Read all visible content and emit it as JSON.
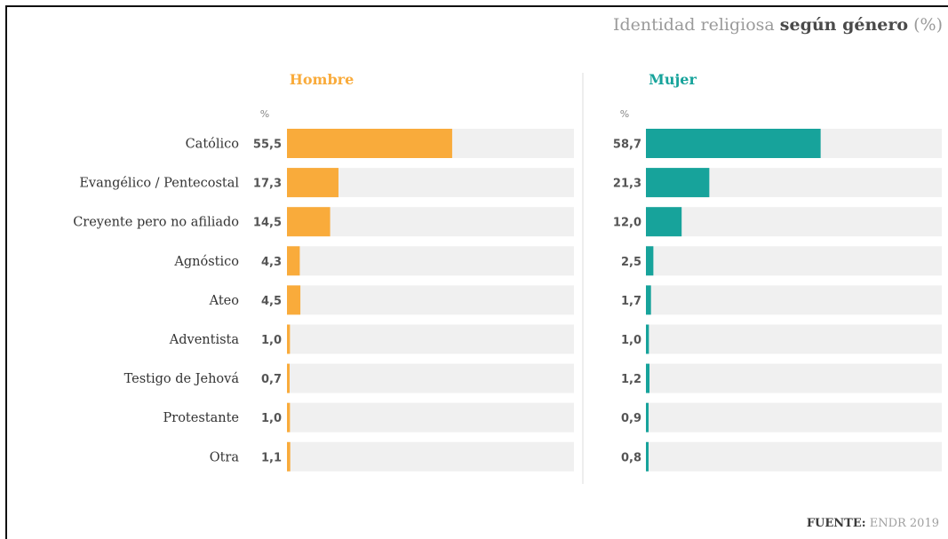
{
  "title_light": "Identidad religiosa",
  "title_bold": "según género",
  "title_suffix": "(%)",
  "source_label": "FUENTE:",
  "source_text": "ENDR 2019",
  "unit": "%",
  "colors": {
    "hombre": "#f9ab3b",
    "mujer": "#17a39b",
    "track": "#f0f0f0"
  },
  "chart_data": {
    "type": "bar",
    "orientation": "horizontal",
    "title": "Identidad religiosa según género (%)",
    "categories": [
      "Católico",
      "Evangélico / Pentecostal",
      "Creyente pero no afiliado",
      "Agnóstico",
      "Ateo",
      "Adventista",
      "Testigo de Jehová",
      "Protestante",
      "Otra"
    ],
    "series": [
      {
        "name": "Hombre",
        "values": [
          55.5,
          17.3,
          14.5,
          4.3,
          4.5,
          1.0,
          0.7,
          1.0,
          1.1
        ],
        "labels": [
          "55,5",
          "17,3",
          "14,5",
          "4,3",
          "4,5",
          "1,0",
          "0,7",
          "1,0",
          "1,1"
        ]
      },
      {
        "name": "Mujer",
        "values": [
          58.7,
          21.3,
          12.0,
          2.5,
          1.7,
          1.0,
          1.2,
          0.9,
          0.8
        ],
        "labels": [
          "58,7",
          "21,3",
          "12,0",
          "2,5",
          "1,7",
          "1,0",
          "1,2",
          "0,9",
          "0,8"
        ]
      }
    ],
    "xlim": [
      0,
      100
    ],
    "grid": false,
    "legend": "panel titles above each panel"
  }
}
